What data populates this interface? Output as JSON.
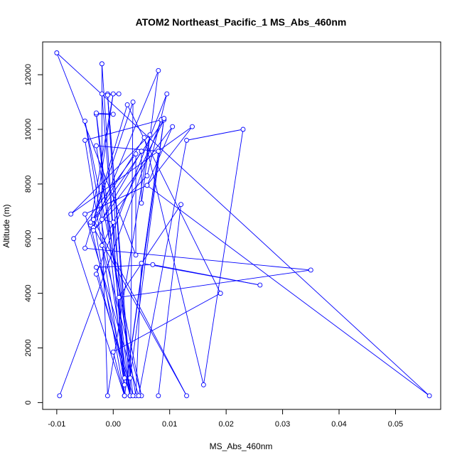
{
  "chart_data": {
    "type": "line",
    "title": "ATOM2 Northeast_Pacific_1 MS_Abs_460nm",
    "xlabel": "MS_Abs_460nm",
    "ylabel": "Altitude (m)",
    "xlim": [
      -0.0125,
      0.058
    ],
    "ylim": [
      -250,
      13200
    ],
    "x_ticks": [
      -0.01,
      0.0,
      0.01,
      0.02,
      0.03,
      0.04,
      0.05
    ],
    "x_tick_labels": [
      "-0.01",
      "0.00",
      "0.01",
      "0.02",
      "0.03",
      "0.04",
      "0.05"
    ],
    "y_ticks": [
      0,
      2000,
      4000,
      6000,
      8000,
      10000,
      12000
    ],
    "y_tick_labels": [
      "0",
      "2000",
      "4000",
      "6000",
      "8000",
      "10000",
      "12000"
    ],
    "series_color": "#0000ff",
    "markers": "open-circle",
    "grid": false,
    "legend": "none",
    "points": [
      {
        "x": -0.0095,
        "y": 250
      },
      {
        "x": 0.0085,
        "y": 10350
      },
      {
        "x": 0.0085,
        "y": 10350
      },
      {
        "x": -0.005,
        "y": 9600
      },
      {
        "x": 0.002,
        "y": 650
      },
      {
        "x": -0.003,
        "y": 10550
      },
      {
        "x": 0.0,
        "y": 10550
      },
      {
        "x": -0.003,
        "y": 10600
      },
      {
        "x": 0.003,
        "y": 250
      },
      {
        "x": -0.004,
        "y": 6500
      },
      {
        "x": 0.009,
        "y": 10350
      },
      {
        "x": -0.002,
        "y": 5750
      },
      {
        "x": 0.005,
        "y": 250
      },
      {
        "x": -0.005,
        "y": 10300
      },
      {
        "x": 0.003,
        "y": 250
      },
      {
        "x": -0.003,
        "y": 4950
      },
      {
        "x": 0.007,
        "y": 5050
      },
      {
        "x": 0.026,
        "y": 4300
      },
      {
        "x": 0.005,
        "y": 5100
      },
      {
        "x": 0.004,
        "y": 250
      },
      {
        "x": -0.003,
        "y": 9400
      },
      {
        "x": 0.008,
        "y": 9200
      },
      {
        "x": 0.002,
        "y": 250
      },
      {
        "x": -0.0035,
        "y": 6700
      },
      {
        "x": 0.0035,
        "y": 11000
      },
      {
        "x": 0.003,
        "y": 250
      },
      {
        "x": -0.001,
        "y": 11300
      },
      {
        "x": 0.002,
        "y": 900
      },
      {
        "x": -0.002,
        "y": 11300
      },
      {
        "x": 0.001,
        "y": 11300
      },
      {
        "x": -0.001,
        "y": 11250
      },
      {
        "x": 0.003,
        "y": 900
      },
      {
        "x": 0.009,
        "y": 10400
      },
      {
        "x": 0.002,
        "y": 250
      },
      {
        "x": -0.002,
        "y": 12400
      },
      {
        "x": -0.002,
        "y": 6700
      },
      {
        "x": 0.005,
        "y": 9200
      },
      {
        "x": 0.005,
        "y": 7300
      },
      {
        "x": 0.008,
        "y": 12150
      },
      {
        "x": -0.0035,
        "y": 6400
      },
      {
        "x": 0.0,
        "y": 11300
      },
      {
        "x": -0.004,
        "y": 6600
      },
      {
        "x": 0.013,
        "y": 250
      },
      {
        "x": -0.0035,
        "y": 6700
      },
      {
        "x": 0.0055,
        "y": 9700
      },
      {
        "x": 0.016,
        "y": 650
      },
      {
        "x": 0.023,
        "y": 10000
      },
      {
        "x": 0.013,
        "y": 9600
      },
      {
        "x": 0.0045,
        "y": 250
      },
      {
        "x": -0.005,
        "y": 6900
      },
      {
        "x": 0.006,
        "y": 7950
      },
      {
        "x": 0.014,
        "y": 10100
      },
      {
        "x": -0.0075,
        "y": 6900
      },
      {
        "x": 0.0065,
        "y": 9800
      },
      {
        "x": -0.001,
        "y": 250
      },
      {
        "x": -0.002,
        "y": 6700
      },
      {
        "x": 0.0,
        "y": 6600
      },
      {
        "x": 0.0035,
        "y": 250
      },
      {
        "x": -0.003,
        "y": 4700
      },
      {
        "x": 0.0095,
        "y": 11300
      },
      {
        "x": 0.006,
        "y": 8300
      },
      {
        "x": -0.0035,
        "y": 6300
      },
      {
        "x": 0.0105,
        "y": 10100
      },
      {
        "x": 0.006,
        "y": 7950
      },
      {
        "x": 0.056,
        "y": 250
      },
      {
        "x": -0.01,
        "y": 12800
      },
      {
        "x": 0.004,
        "y": 5400
      },
      {
        "x": 0.004,
        "y": 9100
      },
      {
        "x": -0.007,
        "y": 6000
      },
      {
        "x": 0.002,
        "y": 250
      },
      {
        "x": 0.0,
        "y": 1850
      },
      {
        "x": 0.019,
        "y": 4000
      },
      {
        "x": 0.0025,
        "y": 10900
      },
      {
        "x": -0.005,
        "y": 5650
      },
      {
        "x": 0.035,
        "y": 4850
      },
      {
        "x": 0.001,
        "y": 3850
      },
      {
        "x": 0.012,
        "y": 7250
      },
      {
        "x": 0.008,
        "y": 250
      }
    ]
  }
}
